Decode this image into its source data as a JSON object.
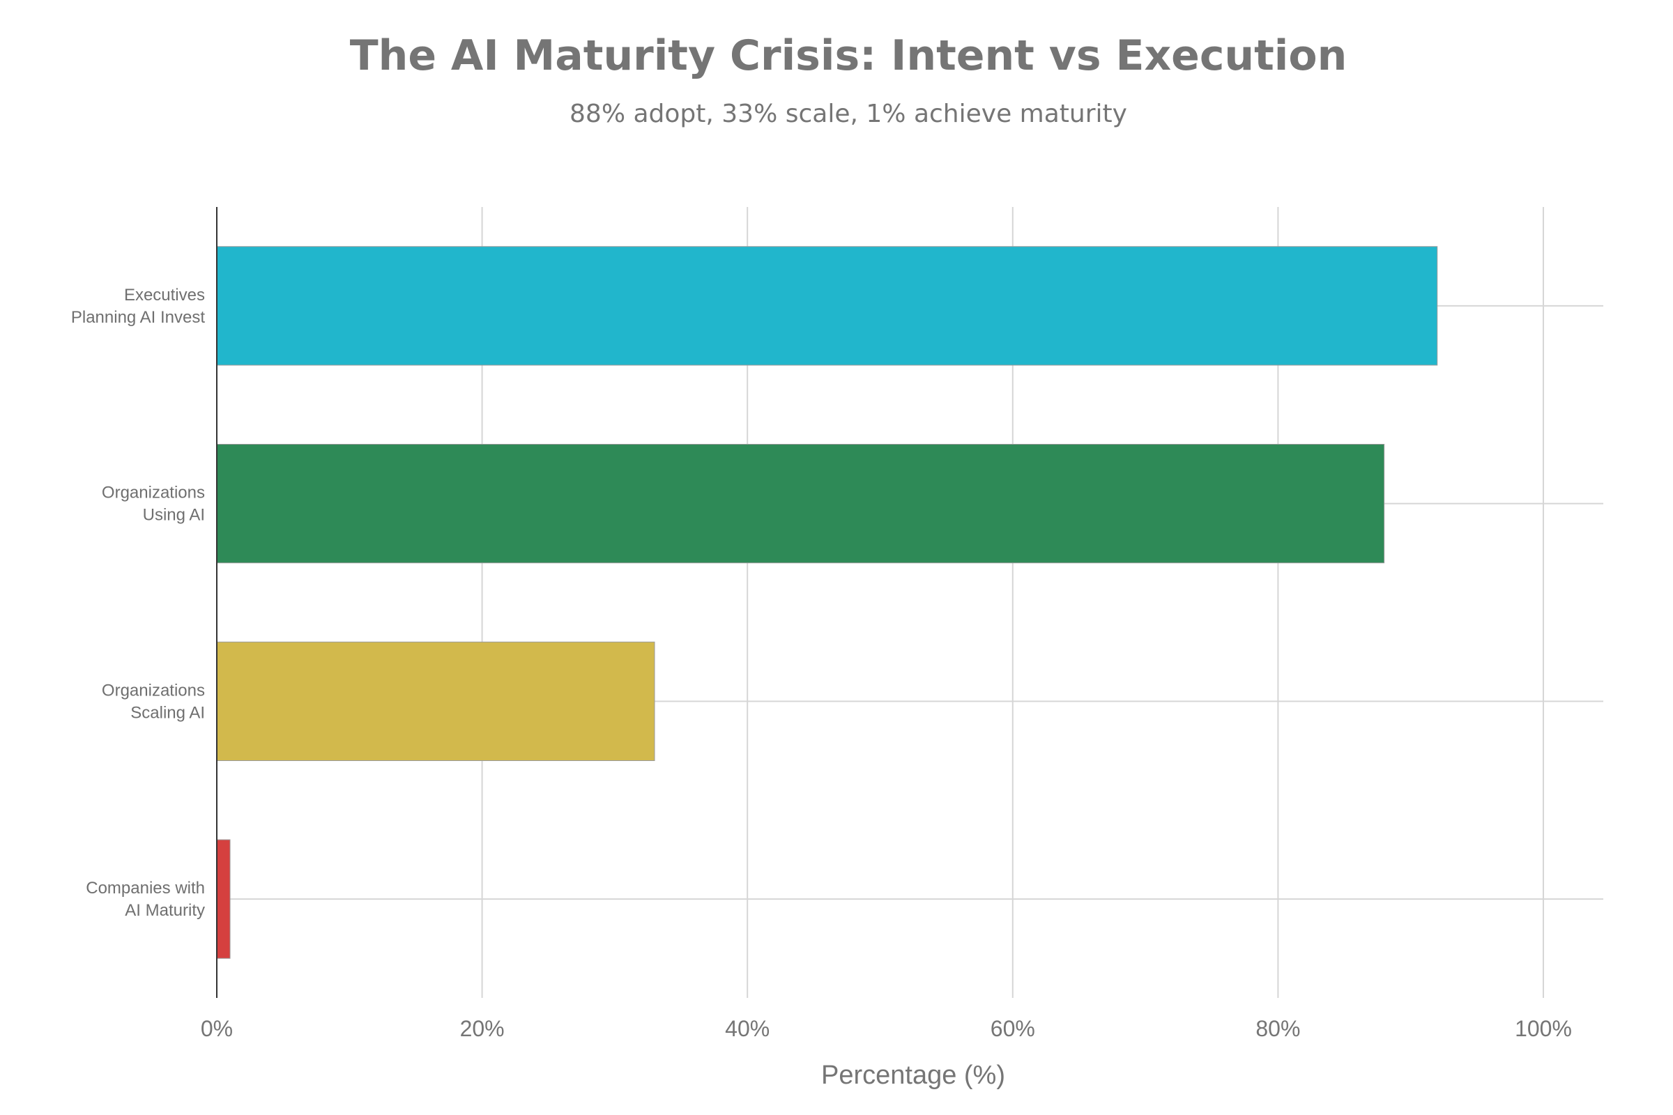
{
  "chart_data": {
    "type": "bar",
    "orientation": "horizontal",
    "title": "The AI Maturity Crisis: Intent vs Execution",
    "subtitle": "88% adopt, 33% scale, 1% achieve maturity",
    "xlabel": "Percentage (%)",
    "ylabel": "",
    "xlim": [
      0,
      105
    ],
    "x_ticks": [
      "0%",
      "20%",
      "40%",
      "60%",
      "80%",
      "100%"
    ],
    "x_tick_values": [
      0,
      20,
      40,
      60,
      80,
      100
    ],
    "grid": true,
    "categories": [
      [
        "Executives",
        "Planning AI Invest"
      ],
      [
        "Organizations",
        "Using AI"
      ],
      [
        "Organizations",
        "Scaling AI"
      ],
      [
        "Companies with",
        "AI Maturity"
      ]
    ],
    "values": [
      92,
      88,
      33,
      1
    ],
    "colors": [
      "#21B6CC",
      "#2E8A57",
      "#D2B94C",
      "#D5403F"
    ]
  }
}
